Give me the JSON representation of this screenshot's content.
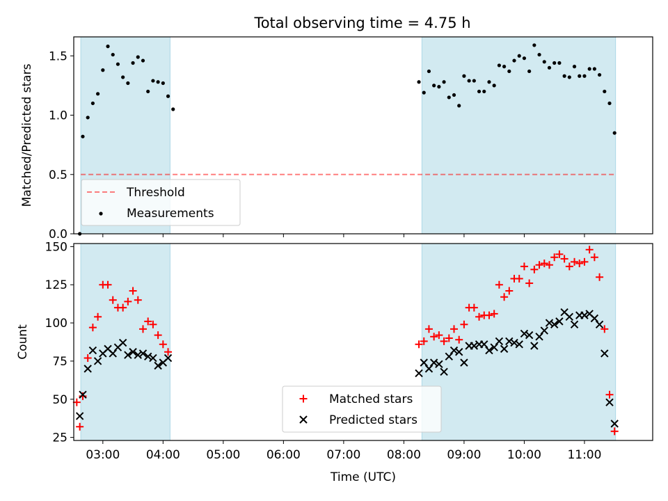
{
  "figure": {
    "title": "Total observing time = 4.75 h",
    "xlabel": "Time (UTC)"
  },
  "colors": {
    "shade": "#add8e6",
    "threshold": "#ff0000",
    "measurements": "#000000",
    "matched": "#ff0000",
    "predicted": "#000000"
  },
  "chart_data": [
    {
      "type": "scatter",
      "ylabel": "Matched/Predicted stars",
      "xlim": [
        "02:31",
        "12:08"
      ],
      "ylim": [
        0,
        1.66
      ],
      "yticks": [
        0.0,
        0.5,
        1.0,
        1.5
      ],
      "ytick_labels": [
        "0.0",
        "0.5",
        "1.0",
        "1.5"
      ],
      "shaded_intervals": [
        [
          "02:38",
          "04:07"
        ],
        [
          "08:18",
          "11:31"
        ]
      ],
      "threshold": {
        "name": "Threshold",
        "value": 0.5,
        "x_range": [
          "02:38",
          "11:31"
        ]
      },
      "legend": {
        "location": "lower left",
        "entries": [
          "Threshold",
          "Measurements"
        ]
      },
      "series": [
        {
          "name": "Measurements",
          "marker": "dot",
          "points": [
            [
              "02:37",
              0.0
            ],
            [
              "02:40",
              0.82
            ],
            [
              "02:45",
              0.98
            ],
            [
              "02:50",
              1.1
            ],
            [
              "02:55",
              1.18
            ],
            [
              "03:00",
              1.38
            ],
            [
              "03:05",
              1.58
            ],
            [
              "03:10",
              1.51
            ],
            [
              "03:15",
              1.43
            ],
            [
              "03:20",
              1.32
            ],
            [
              "03:25",
              1.27
            ],
            [
              "03:30",
              1.44
            ],
            [
              "03:35",
              1.49
            ],
            [
              "03:40",
              1.46
            ],
            [
              "03:45",
              1.2
            ],
            [
              "03:50",
              1.29
            ],
            [
              "03:55",
              1.28
            ],
            [
              "04:00",
              1.27
            ],
            [
              "04:05",
              1.16
            ],
            [
              "04:10",
              1.05
            ],
            [
              "08:15",
              1.28
            ],
            [
              "08:20",
              1.19
            ],
            [
              "08:25",
              1.37
            ],
            [
              "08:30",
              1.25
            ],
            [
              "08:35",
              1.24
            ],
            [
              "08:40",
              1.28
            ],
            [
              "08:45",
              1.15
            ],
            [
              "08:50",
              1.17
            ],
            [
              "08:55",
              1.08
            ],
            [
              "09:00",
              1.33
            ],
            [
              "09:05",
              1.29
            ],
            [
              "09:10",
              1.29
            ],
            [
              "09:15",
              1.2
            ],
            [
              "09:20",
              1.2
            ],
            [
              "09:25",
              1.28
            ],
            [
              "09:30",
              1.25
            ],
            [
              "09:35",
              1.42
            ],
            [
              "09:40",
              1.41
            ],
            [
              "09:45",
              1.37
            ],
            [
              "09:50",
              1.46
            ],
            [
              "09:55",
              1.5
            ],
            [
              "10:00",
              1.48
            ],
            [
              "10:05",
              1.37
            ],
            [
              "10:10",
              1.59
            ],
            [
              "10:15",
              1.51
            ],
            [
              "10:20",
              1.45
            ],
            [
              "10:25",
              1.4
            ],
            [
              "10:30",
              1.44
            ],
            [
              "10:35",
              1.44
            ],
            [
              "10:40",
              1.33
            ],
            [
              "10:45",
              1.32
            ],
            [
              "10:50",
              1.41
            ],
            [
              "10:55",
              1.33
            ],
            [
              "11:00",
              1.33
            ],
            [
              "11:05",
              1.39
            ],
            [
              "11:10",
              1.39
            ],
            [
              "11:15",
              1.34
            ],
            [
              "11:20",
              1.2
            ],
            [
              "11:25",
              1.1
            ],
            [
              "11:30",
              0.85
            ]
          ]
        }
      ]
    },
    {
      "type": "scatter",
      "ylabel": "Count",
      "xlim": [
        "02:31",
        "12:08"
      ],
      "ylim": [
        23,
        152
      ],
      "yticks": [
        25,
        50,
        75,
        100,
        125,
        150
      ],
      "ytick_labels": [
        "25",
        "50",
        "75",
        "100",
        "125",
        "150"
      ],
      "xticks": [
        "03:00",
        "04:00",
        "05:00",
        "06:00",
        "07:00",
        "08:00",
        "09:00",
        "10:00",
        "11:00"
      ],
      "xtick_labels": [
        "03:00",
        "04:00",
        "05:00",
        "06:00",
        "07:00",
        "08:00",
        "09:00",
        "10:00",
        "11:00"
      ],
      "shaded_intervals": [
        [
          "02:38",
          "04:07"
        ],
        [
          "08:18",
          "11:31"
        ]
      ],
      "legend": {
        "location": "lower center",
        "entries": [
          "Matched stars",
          "Predicted stars"
        ]
      },
      "series": [
        {
          "name": "Matched stars",
          "marker": "plus",
          "points": [
            [
              "02:34",
              48
            ],
            [
              "02:37",
              32
            ],
            [
              "02:40",
              52
            ],
            [
              "02:45",
              77
            ],
            [
              "02:50",
              97
            ],
            [
              "02:55",
              104
            ],
            [
              "03:00",
              125
            ],
            [
              "03:05",
              125
            ],
            [
              "03:10",
              115
            ],
            [
              "03:15",
              110
            ],
            [
              "03:20",
              110
            ],
            [
              "03:25",
              114
            ],
            [
              "03:30",
              121
            ],
            [
              "03:35",
              115
            ],
            [
              "03:40",
              96
            ],
            [
              "03:45",
              101
            ],
            [
              "03:50",
              99
            ],
            [
              "03:55",
              92
            ],
            [
              "04:00",
              86
            ],
            [
              "04:05",
              81
            ],
            [
              "08:15",
              86
            ],
            [
              "08:20",
              88
            ],
            [
              "08:25",
              96
            ],
            [
              "08:30",
              91
            ],
            [
              "08:35",
              92
            ],
            [
              "08:40",
              88
            ],
            [
              "08:45",
              90
            ],
            [
              "08:50",
              96
            ],
            [
              "08:55",
              89
            ],
            [
              "09:00",
              99
            ],
            [
              "09:05",
              110
            ],
            [
              "09:10",
              110
            ],
            [
              "09:15",
              104
            ],
            [
              "09:20",
              105
            ],
            [
              "09:25",
              105
            ],
            [
              "09:30",
              106
            ],
            [
              "09:35",
              125
            ],
            [
              "09:40",
              117
            ],
            [
              "09:45",
              121
            ],
            [
              "09:50",
              129
            ],
            [
              "09:55",
              129
            ],
            [
              "10:00",
              137
            ],
            [
              "10:05",
              126
            ],
            [
              "10:10",
              135
            ],
            [
              "10:15",
              138
            ],
            [
              "10:20",
              139
            ],
            [
              "10:25",
              138
            ],
            [
              "10:30",
              143
            ],
            [
              "10:35",
              145
            ],
            [
              "10:40",
              142
            ],
            [
              "10:45",
              137
            ],
            [
              "10:50",
              140
            ],
            [
              "10:55",
              139
            ],
            [
              "11:00",
              140
            ],
            [
              "11:05",
              148
            ],
            [
              "11:10",
              143
            ],
            [
              "11:15",
              130
            ],
            [
              "11:20",
              96
            ],
            [
              "11:25",
              53
            ],
            [
              "11:30",
              29
            ]
          ]
        },
        {
          "name": "Predicted stars",
          "marker": "x",
          "points": [
            [
              "02:37",
              39
            ],
            [
              "02:40",
              53
            ],
            [
              "02:45",
              70
            ],
            [
              "02:50",
              82
            ],
            [
              "02:55",
              75
            ],
            [
              "03:00",
              80
            ],
            [
              "03:05",
              83
            ],
            [
              "03:10",
              80
            ],
            [
              "03:15",
              84
            ],
            [
              "03:20",
              87
            ],
            [
              "03:25",
              79
            ],
            [
              "03:30",
              81
            ],
            [
              "03:35",
              79
            ],
            [
              "03:40",
              80
            ],
            [
              "03:45",
              78
            ],
            [
              "03:50",
              77
            ],
            [
              "03:55",
              72
            ],
            [
              "04:00",
              74
            ],
            [
              "04:05",
              77
            ],
            [
              "08:15",
              67
            ],
            [
              "08:20",
              74
            ],
            [
              "08:25",
              70
            ],
            [
              "08:30",
              74
            ],
            [
              "08:35",
              73
            ],
            [
              "08:40",
              68
            ],
            [
              "08:45",
              78
            ],
            [
              "08:50",
              82
            ],
            [
              "08:55",
              81
            ],
            [
              "09:00",
              74
            ],
            [
              "09:05",
              85
            ],
            [
              "09:10",
              85
            ],
            [
              "09:15",
              86
            ],
            [
              "09:20",
              86
            ],
            [
              "09:25",
              82
            ],
            [
              "09:30",
              84
            ],
            [
              "09:35",
              88
            ],
            [
              "09:40",
              83
            ],
            [
              "09:45",
              88
            ],
            [
              "09:50",
              87
            ],
            [
              "09:55",
              86
            ],
            [
              "10:00",
              93
            ],
            [
              "10:05",
              92
            ],
            [
              "10:10",
              85
            ],
            [
              "10:15",
              91
            ],
            [
              "10:20",
              95
            ],
            [
              "10:25",
              100
            ],
            [
              "10:30",
              99
            ],
            [
              "10:35",
              101
            ],
            [
              "10:40",
              107
            ],
            [
              "10:45",
              104
            ],
            [
              "10:50",
              99
            ],
            [
              "10:55",
              105
            ],
            [
              "11:00",
              105
            ],
            [
              "11:05",
              106
            ],
            [
              "11:10",
              103
            ],
            [
              "11:15",
              99
            ],
            [
              "11:20",
              80
            ],
            [
              "11:25",
              48
            ],
            [
              "11:30",
              34
            ]
          ]
        }
      ]
    }
  ]
}
